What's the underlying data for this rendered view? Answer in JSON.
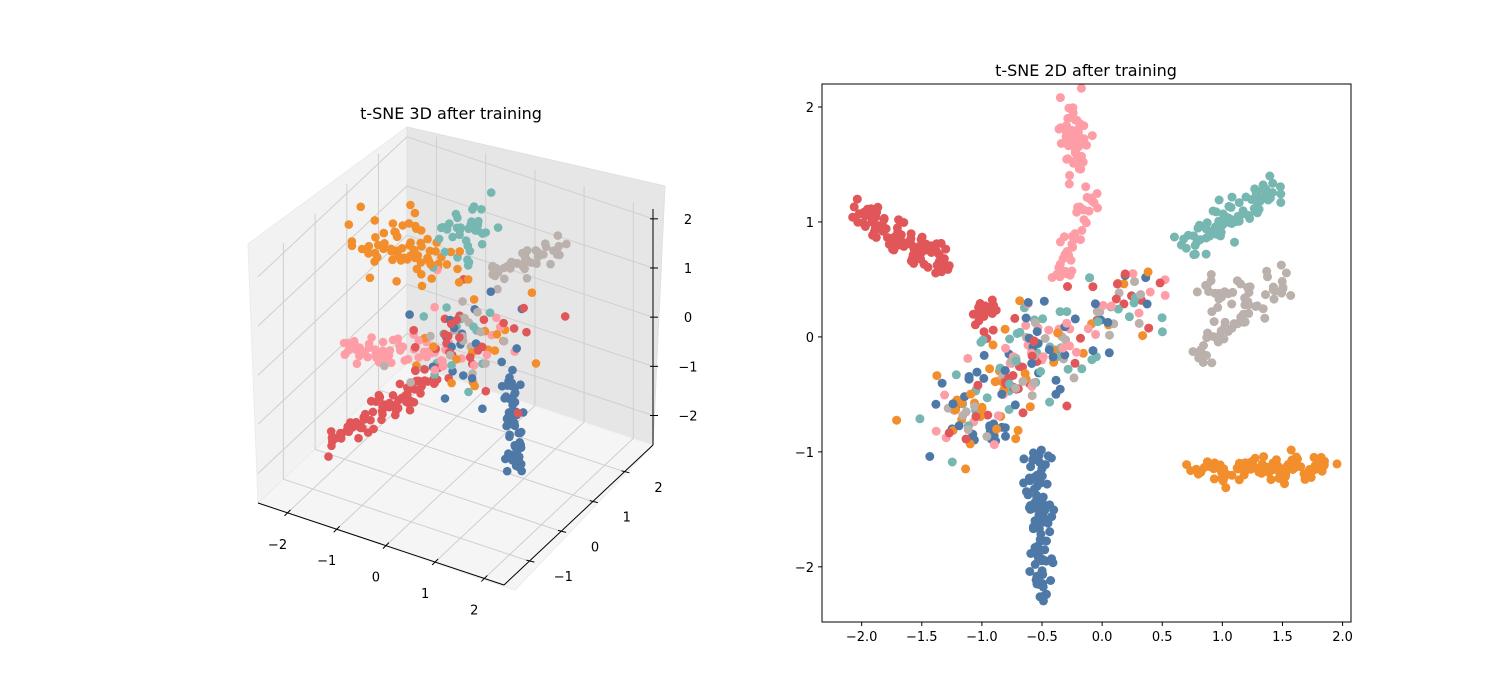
{
  "palette": {
    "blue": "#4e79a7",
    "orange": "#f28e2b",
    "red": "#e15759",
    "teal": "#76b7b2",
    "pink": "#ff9da7",
    "gray": "#bab0ac"
  },
  "chart_data": [
    {
      "type": "scatter3d",
      "title": "t-SNE 3D after training",
      "xlabel": "",
      "ylabel": "",
      "zlabel": "",
      "xlim": [
        -2.6,
        2.4
      ],
      "ylim": [
        -1.8,
        2.9
      ],
      "zlim": [
        -2.6,
        2.2
      ],
      "xticks": [
        -2,
        -1,
        0,
        1,
        2
      ],
      "yticks": [
        -1,
        0,
        1,
        2
      ],
      "zticks": [
        -2,
        -1,
        0,
        1,
        2
      ],
      "xtick_labels": [
        "−2",
        "−1",
        "0",
        "1",
        "2"
      ],
      "ytick_labels": [
        "−1",
        "0",
        "1",
        "2"
      ],
      "ztick_labels": [
        "−2",
        "−1",
        "0",
        "1",
        "2"
      ],
      "grid": true,
      "clusters": [
        {
          "color": "red",
          "type": "line",
          "from": [
            -2.0,
            -0.5,
            -2.0
          ],
          "to": [
            -0.3,
            0.2,
            -0.5
          ],
          "n": 75,
          "spread": [
            0.1,
            0.1,
            0.12
          ]
        },
        {
          "color": "blue",
          "type": "line",
          "from": [
            0.9,
            0.9,
            -2.5
          ],
          "to": [
            0.8,
            0.9,
            -0.5
          ],
          "n": 65,
          "spread": [
            0.08,
            0.08,
            0.12
          ]
        },
        {
          "color": "pink",
          "type": "line",
          "from": [
            -2.5,
            0.8,
            -1.0
          ],
          "to": [
            -0.5,
            1.0,
            -0.6
          ],
          "n": 60,
          "spread": [
            0.15,
            0.15,
            0.1
          ]
        },
        {
          "color": "orange",
          "type": "blob",
          "center": [
            -1.9,
            1.7,
            0.6
          ],
          "n": 70,
          "spread": [
            0.5,
            0.35,
            0.2
          ]
        },
        {
          "color": "teal",
          "type": "blob",
          "center": [
            -1.0,
            2.2,
            1.0
          ],
          "n": 40,
          "spread": [
            0.25,
            0.25,
            0.25
          ]
        },
        {
          "color": "gray",
          "type": "line",
          "from": [
            -0.3,
            2.0,
            0.5
          ],
          "to": [
            0.8,
            2.5,
            1.2
          ],
          "n": 45,
          "spread": [
            0.12,
            0.12,
            0.1
          ]
        },
        {
          "color": "mix",
          "type": "blob",
          "center": [
            -0.2,
            1.0,
            -0.2
          ],
          "n": 110,
          "spread": [
            0.55,
            0.5,
            0.3
          ]
        }
      ]
    },
    {
      "type": "scatter",
      "title": "t-SNE 2D after training",
      "xlabel": "",
      "ylabel": "",
      "xlim": [
        -2.33,
        2.07
      ],
      "ylim": [
        -2.48,
        2.2
      ],
      "xticks": [
        -2.0,
        -1.5,
        -1.0,
        -0.5,
        0.0,
        0.5,
        1.0,
        1.5,
        2.0
      ],
      "yticks": [
        -2,
        -1,
        0,
        1,
        2
      ],
      "xtick_labels": [
        "−2.0",
        "−1.5",
        "−1.0",
        "−0.5",
        "0.0",
        "0.5",
        "1.0",
        "1.5",
        "2.0"
      ],
      "ytick_labels": [
        "−2",
        "−1",
        "0",
        "1",
        "2"
      ],
      "grid": false,
      "clusters": [
        {
          "color": "red",
          "type": "line",
          "from": [
            -2.1,
            1.15
          ],
          "to": [
            -1.3,
            0.6
          ],
          "n": 90,
          "spread": [
            0.07,
            0.07
          ]
        },
        {
          "color": "red",
          "type": "blob",
          "center": [
            -0.97,
            0.17
          ],
          "n": 25,
          "spread": [
            0.06,
            0.08
          ]
        },
        {
          "color": "pink",
          "type": "blob",
          "center": [
            -0.22,
            1.7
          ],
          "n": 60,
          "spread": [
            0.06,
            0.17
          ]
        },
        {
          "color": "pink",
          "type": "line",
          "from": [
            -0.05,
            1.3
          ],
          "to": [
            -0.35,
            0.5
          ],
          "n": 40,
          "spread": [
            0.04,
            0.04
          ]
        },
        {
          "color": "teal",
          "type": "line",
          "from": [
            0.7,
            0.8
          ],
          "to": [
            1.45,
            1.3
          ],
          "n": 80,
          "spread": [
            0.06,
            0.06
          ]
        },
        {
          "color": "gray",
          "type": "line",
          "from": [
            0.75,
            -0.2
          ],
          "to": [
            1.5,
            0.5
          ],
          "n": 55,
          "spread": [
            0.07,
            0.07
          ]
        },
        {
          "color": "gray",
          "type": "blob",
          "center": [
            1.0,
            0.4
          ],
          "n": 20,
          "spread": [
            0.15,
            0.06
          ]
        },
        {
          "color": "orange",
          "type": "line",
          "from": [
            0.8,
            -1.18
          ],
          "to": [
            1.85,
            -1.12
          ],
          "n": 95,
          "spread": [
            0.06,
            0.06
          ]
        },
        {
          "color": "blue",
          "type": "line",
          "from": [
            -0.5,
            -2.25
          ],
          "to": [
            -0.55,
            -1.0
          ],
          "n": 95,
          "spread": [
            0.05,
            0.08
          ]
        },
        {
          "color": "blue",
          "type": "blob",
          "center": [
            -0.95,
            -0.85
          ],
          "n": 12,
          "spread": [
            0.07,
            0.05
          ]
        },
        {
          "color": "mix",
          "type": "line",
          "from": [
            -1.4,
            -0.85
          ],
          "to": [
            0.4,
            0.4
          ],
          "n": 200,
          "spread": [
            0.18,
            0.16
          ]
        },
        {
          "color": "mix",
          "type": "blob",
          "center": [
            -0.65,
            -0.1
          ],
          "n": 40,
          "spread": [
            0.15,
            0.25
          ]
        }
      ]
    }
  ]
}
